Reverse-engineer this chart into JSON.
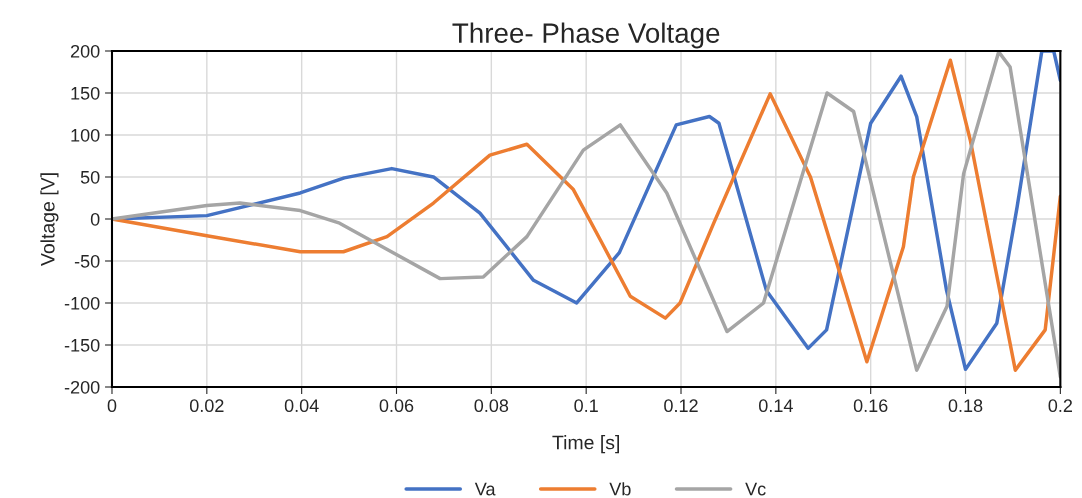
{
  "chart_data": {
    "type": "line",
    "title": "Three- Phase Voltage",
    "xlabel": "Time [s]",
    "ylabel": "Voltage [V]",
    "xlim": [
      0,
      0.2
    ],
    "xticks": [
      0,
      0.02,
      0.04,
      0.06,
      0.08,
      0.1,
      0.12,
      0.14,
      0.16,
      0.18,
      0.2
    ],
    "ylim": [
      -200,
      200
    ],
    "yticks": [
      -200,
      -150,
      -100,
      -50,
      0,
      50,
      100,
      150,
      200
    ],
    "grid": true,
    "legend": "bottom",
    "line_style": "solid",
    "marker": "none",
    "series": [
      {
        "name": "Va",
        "color": "#4472c4",
        "x": [
          0,
          0.02,
          0.0397,
          0.049,
          0.059,
          0.0678,
          0.0776,
          0.0889,
          0.098,
          0.107,
          0.119,
          0.126,
          0.128,
          0.138,
          0.1468,
          0.1507,
          0.16,
          0.1664,
          0.1697,
          0.176,
          0.18,
          0.1866,
          0.1909,
          0.1961,
          0.1986,
          0.2
        ],
        "values": [
          0,
          4,
          31,
          49,
          60,
          50,
          7,
          -73,
          -100,
          -40,
          112,
          122,
          114,
          -85,
          -154,
          -132,
          114,
          170,
          122,
          -85,
          -179,
          -124,
          15,
          200,
          200,
          165
        ]
      },
      {
        "name": "Vb",
        "color": "#ed7d31",
        "x": [
          0,
          0.02,
          0.0397,
          0.0488,
          0.058,
          0.0678,
          0.0797,
          0.0875,
          0.0973,
          0.103,
          0.1093,
          0.1167,
          0.1198,
          0.1269,
          0.1388,
          0.1473,
          0.1592,
          0.1669,
          0.169,
          0.1768,
          0.181,
          0.1905,
          0.1968,
          0.2
        ],
        "values": [
          0,
          -20,
          -39,
          -39,
          -21,
          19,
          76,
          89,
          35,
          -25,
          -92,
          -118,
          -100,
          -5,
          149,
          50,
          -170,
          -33,
          50,
          189,
          94,
          -180,
          -132,
          27
        ]
      },
      {
        "name": "Vc",
        "color": "#a5a5a5",
        "x": [
          0,
          0.02,
          0.027,
          0.0397,
          0.048,
          0.0692,
          0.0783,
          0.0875,
          0.0994,
          0.1072,
          0.117,
          0.1297,
          0.1374,
          0.1508,
          0.1564,
          0.1697,
          0.1761,
          0.1796,
          0.187,
          0.1894,
          0.2
        ],
        "values": [
          0,
          16,
          19,
          10,
          -5,
          -71,
          -69,
          -21,
          82,
          112,
          31,
          -134,
          -100,
          150,
          128,
          -180,
          -104,
          54,
          199,
          181,
          -188
        ]
      }
    ]
  }
}
